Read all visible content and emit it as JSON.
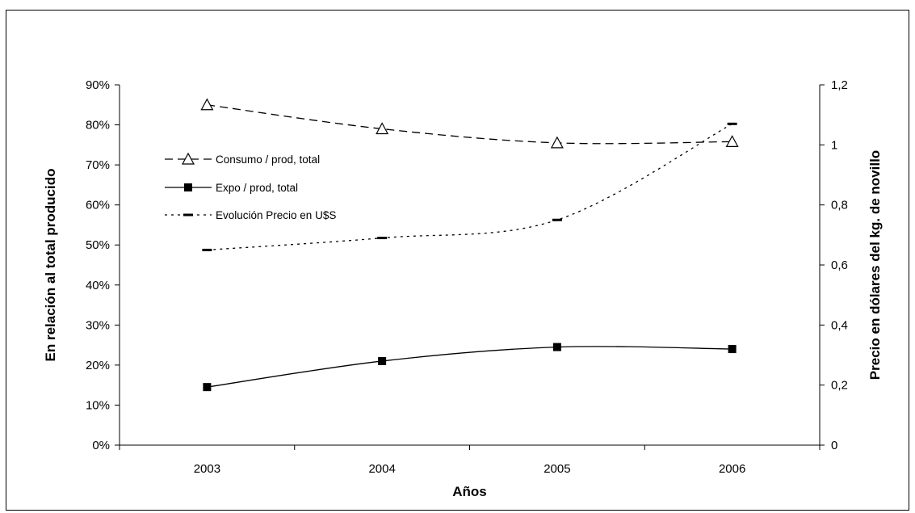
{
  "chart_data": {
    "type": "line",
    "title": "",
    "xlabel": "Años",
    "ylabel": "En relación al total producido",
    "y2label": "Precio en dólares del kg. de novillo",
    "categories": [
      "2003",
      "2004",
      "2005",
      "2006"
    ],
    "ylim": [
      0,
      90
    ],
    "yticks": [
      "0%",
      "10%",
      "20%",
      "30%",
      "40%",
      "50%",
      "60%",
      "70%",
      "80%",
      "90%"
    ],
    "y2lim": [
      0,
      1.2
    ],
    "y2ticks": [
      "0",
      "0,2",
      "0,4",
      "0,6",
      "0,8",
      "1",
      "1,2"
    ],
    "legend_position": "upper-left",
    "grid": false,
    "series": [
      {
        "name": "Consumo / prod, total",
        "axis": "left",
        "values": [
          85,
          79,
          75.5,
          75.8
        ],
        "marker": "open-triangle",
        "line": "dashed",
        "color": "#000000"
      },
      {
        "name": "Expo / prod, total",
        "axis": "left",
        "values": [
          14.5,
          21,
          24.5,
          24
        ],
        "marker": "filled-square",
        "line": "solid",
        "color": "#000000"
      },
      {
        "name": "Evolución Precio en U$S",
        "axis": "right",
        "values": [
          0.65,
          0.69,
          0.75,
          1.07
        ],
        "marker": "dash",
        "line": "dotted",
        "color": "#000000"
      }
    ]
  }
}
